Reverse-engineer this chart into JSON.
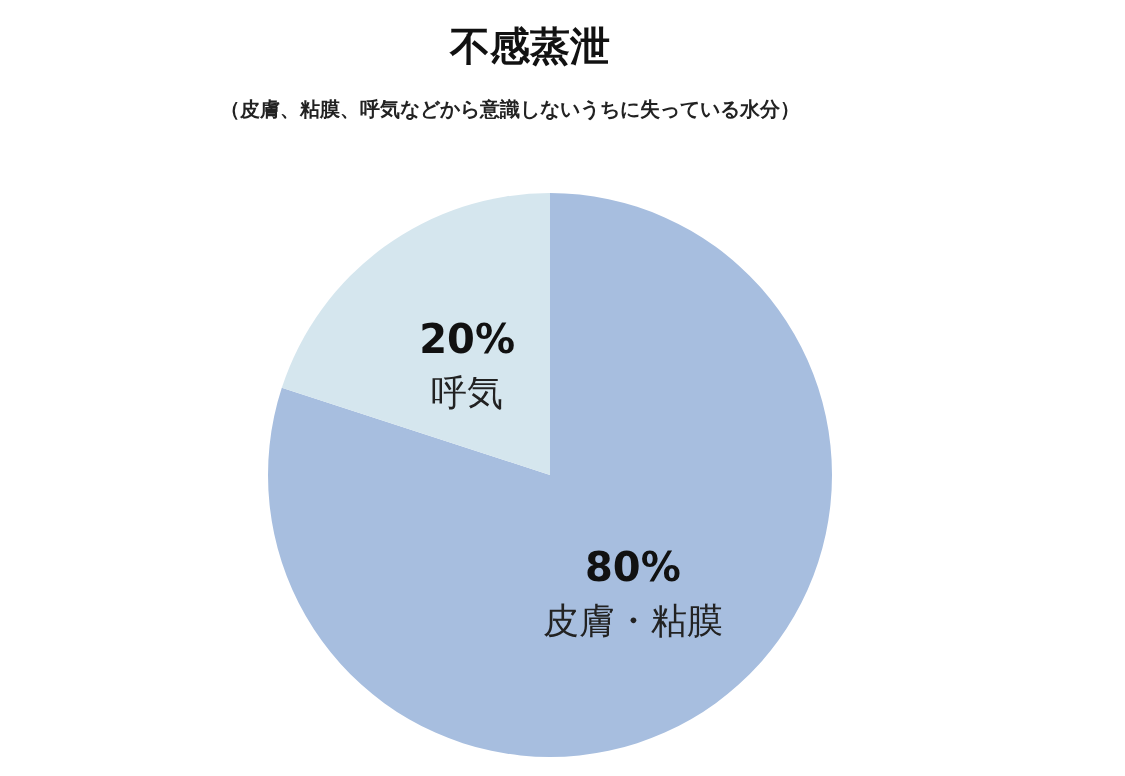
{
  "chart_data": {
    "type": "pie",
    "title": "不感蒸泄",
    "subtitle": "（皮膚、粘膜、呼気などから意識しないうちに失っている水分）",
    "categories": [
      "皮膚・粘膜",
      "呼気"
    ],
    "values": [
      80,
      20
    ],
    "value_labels": [
      "80%",
      "20%"
    ],
    "colors": [
      "#a7bedf",
      "#d5e6ee"
    ]
  }
}
